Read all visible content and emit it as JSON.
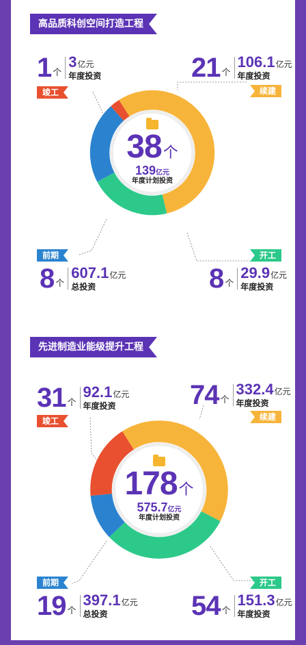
{
  "colors": {
    "completed": "#e8502f",
    "ongoing": "#f7b43a",
    "started": "#2cc98a",
    "preliminary": "#2b83cf",
    "accent": "#5b33b5"
  },
  "chart_data": [
    {
      "type": "donut",
      "title": "高品质科创空间打造工程",
      "center": {
        "count": "38",
        "count_unit": "个",
        "investment": "139",
        "investment_unit": "亿元",
        "investment_label": "年度计划投资"
      },
      "segments": [
        {
          "name": "竣工",
          "count": 1,
          "count_unit": "个",
          "amount": "3",
          "amount_unit": "亿元",
          "amount_label": "年度投资",
          "color": "#e8502f"
        },
        {
          "name": "续建",
          "count": 21,
          "count_unit": "个",
          "amount": "106.1",
          "amount_unit": "亿元",
          "amount_label": "年度投资",
          "color": "#f7b43a"
        },
        {
          "name": "开工",
          "count": 8,
          "count_unit": "个",
          "amount": "29.9",
          "amount_unit": "亿元",
          "amount_label": "年度投资",
          "color": "#2cc98a"
        },
        {
          "name": "前期",
          "count": 8,
          "count_unit": "个",
          "amount": "607.1",
          "amount_unit": "亿元",
          "amount_label": "总投资",
          "color": "#2b83cf"
        }
      ]
    },
    {
      "type": "donut",
      "title": "先进制造业能级提升工程",
      "center": {
        "count": "178",
        "count_unit": "个",
        "investment": "575.7",
        "investment_unit": "亿元",
        "investment_label": "年度计划投资"
      },
      "segments": [
        {
          "name": "竣工",
          "count": 31,
          "count_unit": "个",
          "amount": "92.1",
          "amount_unit": "亿元",
          "amount_label": "年度投资",
          "color": "#e8502f"
        },
        {
          "name": "续建",
          "count": 74,
          "count_unit": "个",
          "amount": "332.4",
          "amount_unit": "亿元",
          "amount_label": "年度投资",
          "color": "#f7b43a"
        },
        {
          "name": "开工",
          "count": 54,
          "count_unit": "个",
          "amount": "151.3",
          "amount_unit": "亿元",
          "amount_label": "年度投资",
          "color": "#2cc98a"
        },
        {
          "name": "前期",
          "count": 19,
          "count_unit": "个",
          "amount": "397.1",
          "amount_unit": "亿元",
          "amount_label": "总投资",
          "color": "#2b83cf"
        }
      ]
    }
  ]
}
